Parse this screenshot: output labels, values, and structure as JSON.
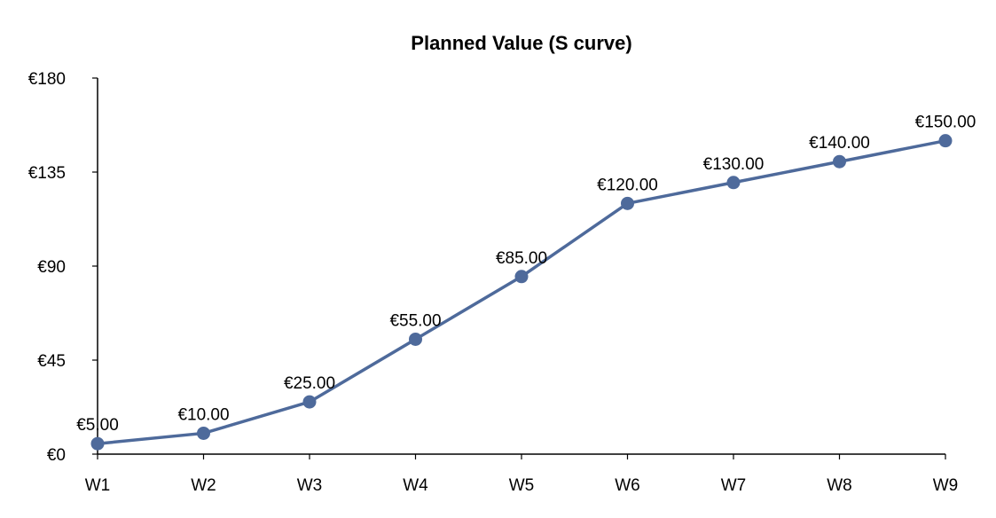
{
  "chart_data": {
    "type": "line",
    "title": "Planned Value (S curve)",
    "categories": [
      "W1",
      "W2",
      "W3",
      "W4",
      "W5",
      "W6",
      "W7",
      "W8",
      "W9"
    ],
    "series": [
      {
        "values": [
          5,
          10,
          25,
          55,
          85,
          120,
          130,
          140,
          150
        ],
        "data_labels": [
          "€5.00",
          "€10.00",
          "€25.00",
          "€55.00",
          "€85.00",
          "€120.00",
          "€130.00",
          "€140.00",
          "€150.00"
        ],
        "color": "#4e6a9b",
        "marker": "circle"
      }
    ],
    "ylim": [
      0,
      180
    ],
    "yticks": [
      0,
      45,
      90,
      135,
      180
    ],
    "ytick_labels": [
      "€0",
      "€45",
      "€90",
      "€135",
      "€180"
    ],
    "grid": false,
    "legend": "none"
  }
}
